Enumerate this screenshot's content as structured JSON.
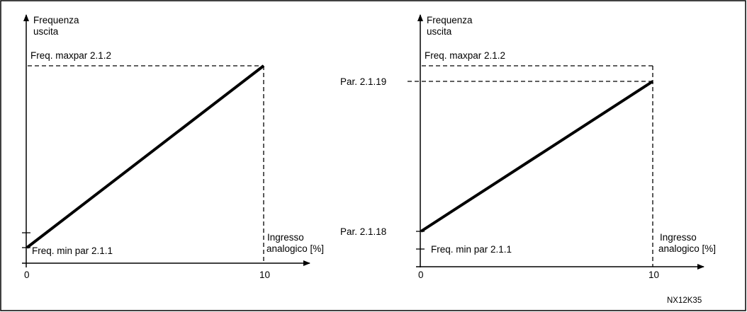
{
  "left": {
    "y_axis_label_line1": "Frequenza",
    "y_axis_label_line2": "uscita",
    "max_label": "Freq. maxpar 2.1.2",
    "min_label": "Freq. min par 2.1.1",
    "x_axis_label_line1": "Ingresso",
    "x_axis_label_line2": "analogico [%]",
    "x_tick_start": "0",
    "x_tick_end": "10"
  },
  "right": {
    "y_axis_label_line1": "Frequenza",
    "y_axis_label_line2": "uscita",
    "max_label": "Freq. maxpar 2.1.2",
    "par_high_label": "Par. 2.1.19",
    "par_low_label": "Par. 2.1.18",
    "min_label": "Freq. min par 2.1.1",
    "x_axis_label_line1": "Ingresso",
    "x_axis_label_line2": "analogico [%]",
    "x_tick_start": "0",
    "x_tick_end": "10"
  },
  "figure_code": "NX12K35"
}
